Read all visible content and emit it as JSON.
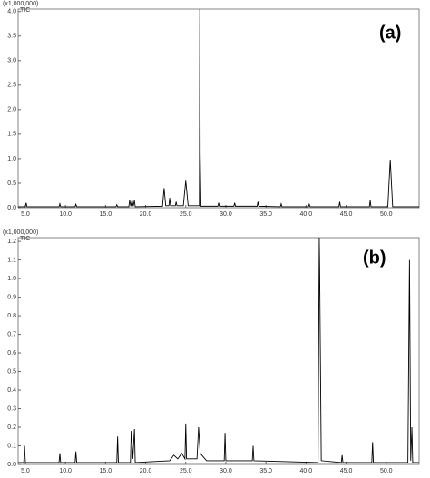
{
  "chart_data": [
    {
      "type": "line",
      "y_multiplier": "(x1,000,000)",
      "trace_label": "TIC",
      "panel_label": "(a)",
      "color": "#000000",
      "xlim": [
        4.1,
        54.1
      ],
      "ylim": [
        0,
        4.05
      ],
      "xticks": [
        {
          "value": 5,
          "label": "5.0"
        },
        {
          "value": 10,
          "label": "10.0"
        },
        {
          "value": 15,
          "label": "15.0"
        },
        {
          "value": 20,
          "label": "20.0"
        },
        {
          "value": 25,
          "label": "25.0"
        },
        {
          "value": 30,
          "label": "30.0"
        },
        {
          "value": 35,
          "label": "35.0"
        },
        {
          "value": 40,
          "label": "40.0"
        },
        {
          "value": 45,
          "label": "45.0"
        },
        {
          "value": 50,
          "label": "50.0"
        }
      ],
      "yticks": [
        {
          "value": 0,
          "label": "0.0"
        },
        0.5,
        {
          "value": 1,
          "label": "1.0"
        },
        1.5,
        {
          "value": 2,
          "label": "2.0"
        },
        2.5,
        {
          "value": 3,
          "label": "3.0"
        },
        3.5,
        {
          "value": 4,
          "label": "4.0"
        }
      ],
      "x": [
        4.1,
        5.0,
        5.1,
        5.2,
        9.2,
        9.3,
        9.4,
        11.2,
        11.3,
        11.4,
        16.3,
        16.4,
        16.5,
        17.9,
        18.0,
        18.15,
        18.3,
        18.45,
        18.6,
        18.7,
        22.1,
        22.3,
        22.5,
        22.9,
        23.0,
        23.1,
        23.7,
        23.8,
        23.9,
        24.7,
        25.0,
        25.3,
        26.7,
        26.75,
        26.8,
        26.9,
        29.0,
        29.1,
        29.2,
        31.0,
        31.1,
        31.2,
        33.9,
        34.0,
        34.1,
        36.8,
        36.9,
        37.0,
        40.3,
        40.4,
        40.5,
        44.1,
        44.2,
        44.3,
        47.9,
        48.0,
        48.1,
        50.2,
        50.5,
        50.8,
        54.1
      ],
      "values": [
        0.02,
        0.02,
        0.1,
        0.02,
        0.02,
        0.08,
        0.02,
        0.02,
        0.07,
        0.02,
        0.02,
        0.06,
        0.02,
        0.02,
        0.15,
        0.03,
        0.16,
        0.03,
        0.15,
        0.02,
        0.03,
        0.4,
        0.04,
        0.04,
        0.2,
        0.04,
        0.04,
        0.12,
        0.04,
        0.04,
        0.55,
        0.04,
        0.04,
        4.05,
        1.1,
        0.03,
        0.03,
        0.1,
        0.03,
        0.03,
        0.1,
        0.03,
        0.03,
        0.12,
        0.03,
        0.02,
        0.08,
        0.02,
        0.02,
        0.07,
        0.02,
        0.02,
        0.12,
        0.02,
        0.02,
        0.15,
        0.02,
        0.02,
        0.98,
        0.02,
        0.02
      ]
    },
    {
      "type": "line",
      "y_multiplier": "(x1,000,000)",
      "trace_label": "TIC",
      "panel_label": "(b)",
      "color": "#000000",
      "xlim": [
        4.1,
        54.1
      ],
      "ylim": [
        0,
        1.22
      ],
      "xticks": [
        {
          "value": 5,
          "label": "5.0"
        },
        {
          "value": 10,
          "label": "10.0"
        },
        {
          "value": 15,
          "label": "15.0"
        },
        {
          "value": 20,
          "label": "20.0"
        },
        {
          "value": 25,
          "label": "25.0"
        },
        {
          "value": 30,
          "label": "30.0"
        },
        {
          "value": 35,
          "label": "35.0"
        },
        {
          "value": 40,
          "label": "40.0"
        },
        {
          "value": 45,
          "label": "45.0"
        },
        {
          "value": 50,
          "label": "50.0"
        }
      ],
      "yticks": [
        {
          "value": 0,
          "label": "0.0"
        },
        0.1,
        0.2,
        0.3,
        0.4,
        0.5,
        0.6,
        0.7,
        0.8,
        0.9,
        {
          "value": 1,
          "label": "1.0"
        },
        1.1,
        1.2
      ],
      "x": [
        4.1,
        4.8,
        4.9,
        5.0,
        9.2,
        9.3,
        9.4,
        11.2,
        11.3,
        11.4,
        16.4,
        16.5,
        16.6,
        18.1,
        18.2,
        18.4,
        18.6,
        18.7,
        23.0,
        23.5,
        24.0,
        24.5,
        24.9,
        25.0,
        25.1,
        26.4,
        26.6,
        26.8,
        27.6,
        29.8,
        29.9,
        30.0,
        33.3,
        33.4,
        33.5,
        41.5,
        41.65,
        41.7,
        41.9,
        44.4,
        44.5,
        44.6,
        48.2,
        48.3,
        48.4,
        52.7,
        52.9,
        53.05,
        53.2,
        53.3,
        54.1
      ],
      "values": [
        0.01,
        0.01,
        0.1,
        0.01,
        0.01,
        0.06,
        0.01,
        0.01,
        0.07,
        0.01,
        0.01,
        0.15,
        0.01,
        0.01,
        0.18,
        0.03,
        0.19,
        0.01,
        0.02,
        0.05,
        0.03,
        0.06,
        0.03,
        0.22,
        0.03,
        0.03,
        0.2,
        0.06,
        0.02,
        0.02,
        0.17,
        0.02,
        0.02,
        0.1,
        0.02,
        0.01,
        1.22,
        1.05,
        0.02,
        0.01,
        0.05,
        0.01,
        0.01,
        0.12,
        0.01,
        0.01,
        1.1,
        0.02,
        0.2,
        0.01,
        0.01
      ]
    }
  ]
}
